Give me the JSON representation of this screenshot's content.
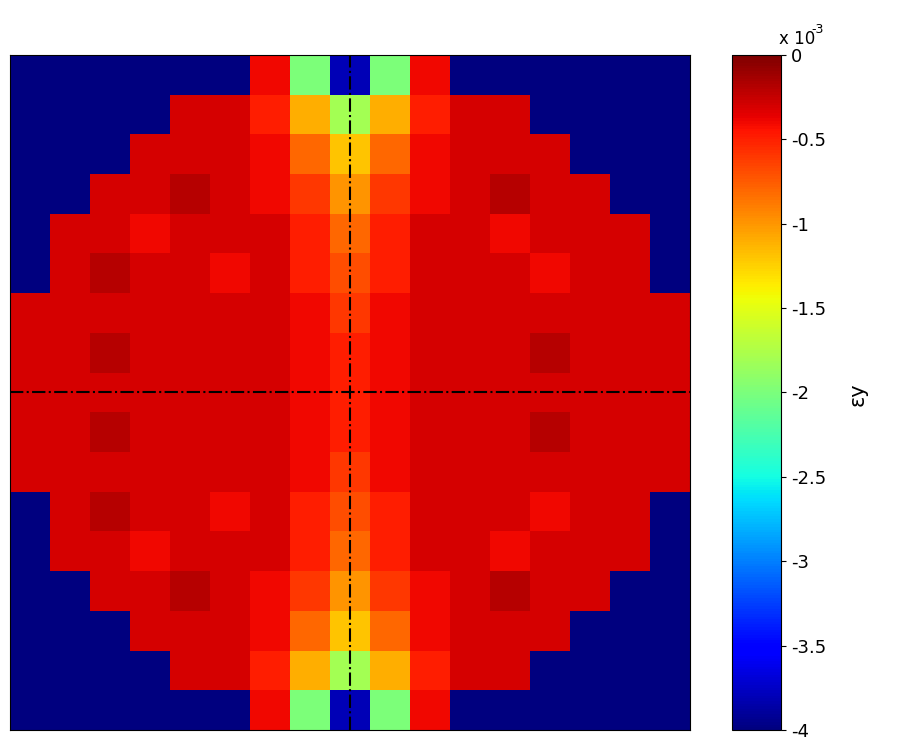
{
  "chart_data": {
    "type": "heatmap",
    "tick_labels": false,
    "cells": [
      [
        -4,
        -4,
        -4,
        -4,
        -4,
        -4,
        -0.4,
        -2.0,
        -3.8,
        -2.0,
        -0.4,
        -4,
        -4,
        -4,
        -4,
        -4,
        -4
      ],
      [
        -4,
        -4,
        -4,
        -4,
        -0.3,
        -0.3,
        -0.5,
        -1.1,
        -1.8,
        -1.1,
        -0.5,
        -0.3,
        -0.3,
        -4,
        -4,
        -4,
        -4
      ],
      [
        -4,
        -4,
        -4,
        -0.3,
        -0.3,
        -0.3,
        -0.4,
        -0.8,
        -1.2,
        -0.8,
        -0.4,
        -0.3,
        -0.3,
        -0.3,
        -4,
        -4,
        -4
      ],
      [
        -4,
        -4,
        -0.3,
        -0.3,
        -0.2,
        -0.3,
        -0.4,
        -0.6,
        -1.0,
        -0.6,
        -0.4,
        -0.3,
        -0.2,
        -0.3,
        -0.3,
        -4,
        -4
      ],
      [
        -4,
        -0.3,
        -0.3,
        -0.4,
        -0.3,
        -0.3,
        -0.3,
        -0.5,
        -0.8,
        -0.5,
        -0.3,
        -0.3,
        -0.4,
        -0.3,
        -0.3,
        -0.3,
        -4
      ],
      [
        -4,
        -0.3,
        -0.2,
        -0.3,
        -0.3,
        -0.4,
        -0.3,
        -0.5,
        -0.7,
        -0.5,
        -0.3,
        -0.3,
        -0.3,
        -0.4,
        -0.3,
        -0.3,
        -4
      ],
      [
        -0.3,
        -0.3,
        -0.3,
        -0.3,
        -0.3,
        -0.3,
        -0.3,
        -0.4,
        -0.6,
        -0.4,
        -0.3,
        -0.3,
        -0.3,
        -0.3,
        -0.3,
        -0.3,
        -0.3
      ],
      [
        -0.3,
        -0.3,
        -0.2,
        -0.3,
        -0.3,
        -0.3,
        -0.3,
        -0.4,
        -0.5,
        -0.4,
        -0.3,
        -0.3,
        -0.3,
        -0.2,
        -0.3,
        -0.3,
        -0.3
      ],
      [
        -0.3,
        -0.3,
        -0.3,
        -0.3,
        -0.3,
        -0.3,
        -0.3,
        -0.4,
        -0.5,
        -0.4,
        -0.3,
        -0.3,
        -0.3,
        -0.3,
        -0.3,
        -0.3,
        -0.3
      ],
      [
        -0.3,
        -0.3,
        -0.2,
        -0.3,
        -0.3,
        -0.3,
        -0.3,
        -0.4,
        -0.5,
        -0.4,
        -0.3,
        -0.3,
        -0.3,
        -0.2,
        -0.3,
        -0.3,
        -0.3
      ],
      [
        -0.3,
        -0.3,
        -0.3,
        -0.3,
        -0.3,
        -0.3,
        -0.3,
        -0.4,
        -0.6,
        -0.4,
        -0.3,
        -0.3,
        -0.3,
        -0.3,
        -0.3,
        -0.3,
        -0.3
      ],
      [
        -4,
        -0.3,
        -0.2,
        -0.3,
        -0.3,
        -0.4,
        -0.3,
        -0.5,
        -0.7,
        -0.5,
        -0.3,
        -0.3,
        -0.3,
        -0.4,
        -0.3,
        -0.3,
        -4
      ],
      [
        -4,
        -0.3,
        -0.3,
        -0.4,
        -0.3,
        -0.3,
        -0.3,
        -0.5,
        -0.8,
        -0.5,
        -0.3,
        -0.3,
        -0.4,
        -0.3,
        -0.3,
        -0.3,
        -4
      ],
      [
        -4,
        -4,
        -0.3,
        -0.3,
        -0.2,
        -0.3,
        -0.4,
        -0.6,
        -1.0,
        -0.6,
        -0.4,
        -0.3,
        -0.2,
        -0.3,
        -0.3,
        -4,
        -4
      ],
      [
        -4,
        -4,
        -4,
        -0.3,
        -0.3,
        -0.3,
        -0.4,
        -0.8,
        -1.2,
        -0.8,
        -0.4,
        -0.3,
        -0.3,
        -0.3,
        -4,
        -4,
        -4
      ],
      [
        -4,
        -4,
        -4,
        -4,
        -0.3,
        -0.3,
        -0.5,
        -1.1,
        -1.8,
        -1.1,
        -0.5,
        -0.3,
        -0.3,
        -4,
        -4,
        -4,
        -4
      ],
      [
        -4,
        -4,
        -4,
        -4,
        -4,
        -4,
        -0.4,
        -2.0,
        -3.8,
        -2.0,
        -0.4,
        -4,
        -4,
        -4,
        -4,
        -4,
        -4
      ]
    ],
    "colorbar": {
      "lim": [
        -4,
        0
      ],
      "ticks": [
        -4,
        -3.5,
        -3,
        -2.5,
        -2,
        -1.5,
        -1,
        -0.5,
        0
      ],
      "label": "εy",
      "multiplier": {
        "base": "x 10",
        "exponent": "-3"
      }
    }
  }
}
